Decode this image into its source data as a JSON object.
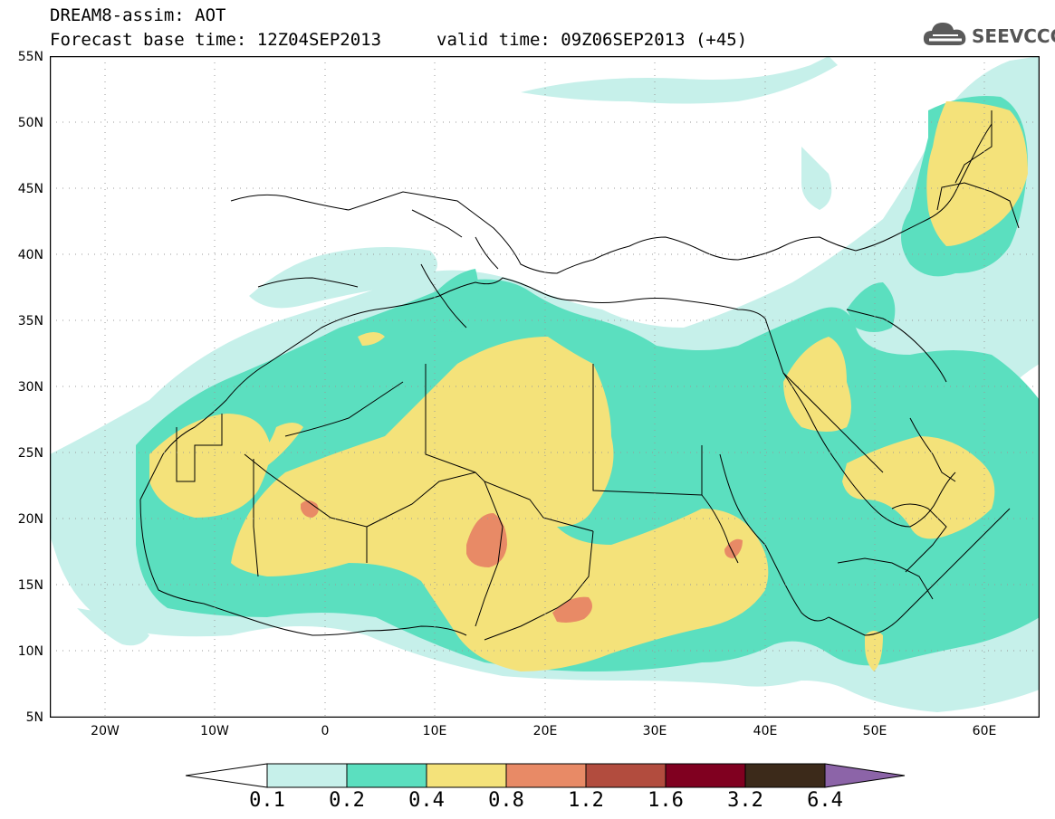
{
  "header": {
    "title_line1": "DREAM8-assim: AOT",
    "title_line2": "Forecast base time: 12Z04SEP2013",
    "valid_time": "valid time: 09Z06SEP2013 (+45)"
  },
  "logo": {
    "text": "SEEVCCC",
    "icon": "cloud-icon"
  },
  "map": {
    "lat_labels": [
      "55N",
      "50N",
      "45N",
      "40N",
      "35N",
      "30N",
      "25N",
      "20N",
      "15N",
      "10N",
      "5N"
    ],
    "lon_labels": [
      "20W",
      "10W",
      "0",
      "10E",
      "20E",
      "30E",
      "40E",
      "50E",
      "60E"
    ],
    "lon_range": [
      -25,
      65
    ],
    "lat_range": [
      5,
      55
    ]
  },
  "colorbar": {
    "labels": [
      "0.1",
      "0.2",
      "0.4",
      "0.8",
      "1.2",
      "1.6",
      "3.2",
      "6.4"
    ],
    "colors": [
      "#ffffff",
      "#c6f0ea",
      "#5bdfbf",
      "#f4e27a",
      "#e88a66",
      "#b24c3e",
      "#800020",
      "#3c2a1a",
      "#8c64a8"
    ]
  },
  "colors": {
    "level1": "#c6f0ea",
    "level2": "#5bdfbf",
    "level3": "#f4e27a",
    "level4": "#e88a66",
    "border": "#000000"
  }
}
